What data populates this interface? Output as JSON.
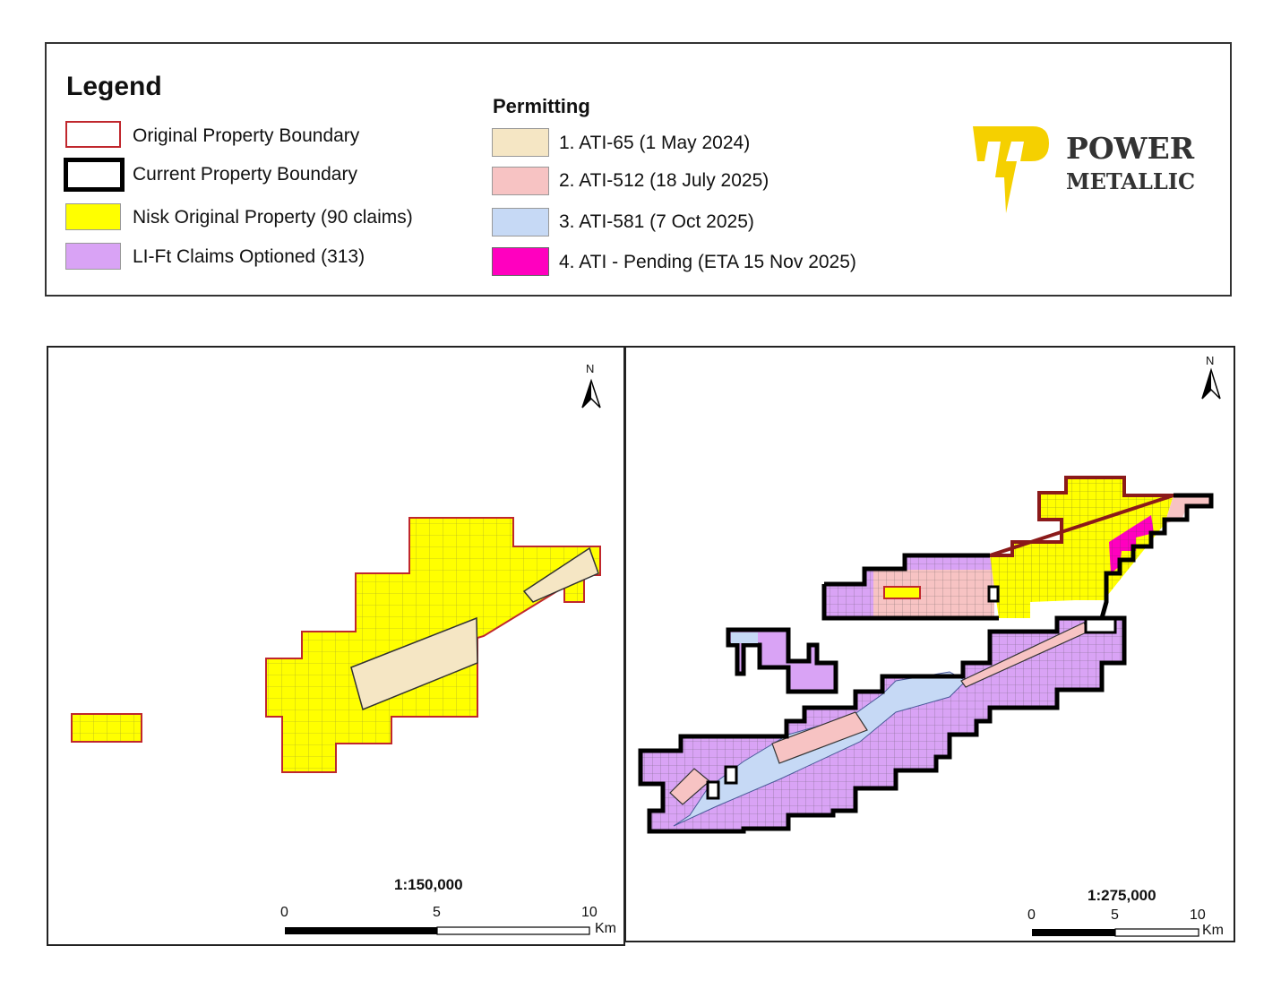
{
  "legend": {
    "title": "Legend",
    "items": [
      {
        "label": "Original Property Boundary",
        "fill": "#ffffff",
        "stroke": "#c0272d"
      },
      {
        "label": "Current Property Boundary",
        "fill": "#ffffff",
        "stroke": "#000000"
      },
      {
        "label": "Nisk Original Property (90 claims)",
        "fill": "#ffff00",
        "stroke": "#999999"
      },
      {
        "label": "LI-Ft Claims Optioned (313)",
        "fill": "#d9a3f5",
        "stroke": "#999999"
      }
    ]
  },
  "permitting": {
    "title": "Permitting",
    "items": [
      {
        "label": "1. ATI-65 (1 May 2024)",
        "fill": "#f5e6c4"
      },
      {
        "label": "2. ATI-512 (18 July 2025)",
        "fill": "#f7c3c3"
      },
      {
        "label": "3. ATI-581 (7 Oct 2025)",
        "fill": "#c6d9f5"
      },
      {
        "label": "4. ATI - Pending (ETA 15 Nov 2025)",
        "fill": "#ff00bf"
      }
    ]
  },
  "logo": {
    "line1": "POWER",
    "line2": "METALLIC",
    "color": "#f5d000"
  },
  "left_map": {
    "north": "N",
    "scale_ratio": "1:150,000",
    "scale_ticks": [
      "0",
      "5",
      "10"
    ],
    "unit": "Km"
  },
  "right_map": {
    "north": "N",
    "scale_ratio": "1:275,000",
    "scale_ticks": [
      "0",
      "5",
      "10"
    ],
    "unit": "Km"
  }
}
